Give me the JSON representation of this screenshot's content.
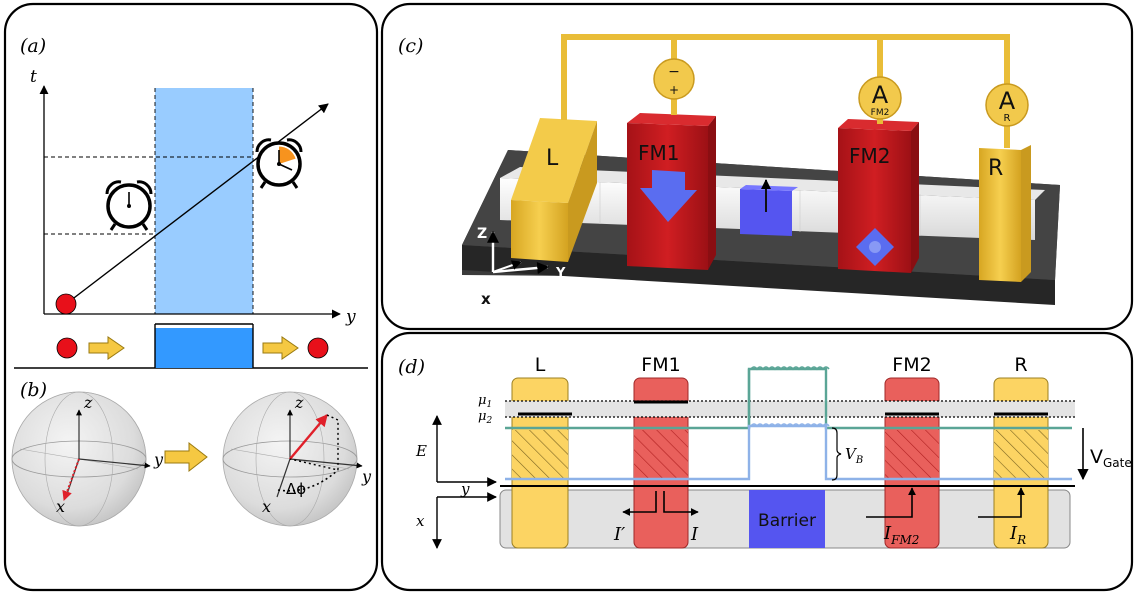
{
  "panels": {
    "a": {
      "label": "(a)",
      "axis_t": "t",
      "axis_y": "y"
    },
    "b": {
      "label": "(b)",
      "left_sphere": {
        "z": "z",
        "x": "x",
        "y": "y"
      },
      "right_sphere": {
        "z": "z",
        "x": "x",
        "y": "y",
        "angle": "Δϕ"
      }
    },
    "c": {
      "label": "(c)",
      "blocks": {
        "L": "L",
        "FM1": "FM1",
        "FM2": "FM2",
        "R": "R"
      },
      "meter_left_top": "−",
      "meter_left_bottom": "+",
      "meter_fm2_main": "A",
      "meter_fm2_sub": "FM2",
      "meter_r_main": "A",
      "meter_r_sub": "R",
      "axes": {
        "z": "Z",
        "y": "Y",
        "x": "x"
      }
    },
    "d": {
      "label": "(d)",
      "columns": {
        "L": "L",
        "FM1": "FM1",
        "FM2": "FM2",
        "R": "R"
      },
      "mu1": "μ",
      "mu1_sub": "1",
      "mu2": "μ",
      "mu2_sub": "2",
      "axis_E": "E",
      "axis_y": "y",
      "axis_x": "x",
      "vb": "V",
      "vb_sub": "B",
      "vgate": "V",
      "vgate_sub": "Gate",
      "barrier": "Barrier",
      "current_I_prime": "I′",
      "current_I": "I",
      "current_IFM2": "I",
      "current_IFM2_sub": "FM2",
      "current_IR": "I",
      "current_IR_sub": "R"
    }
  },
  "colors": {
    "barrier_light": "#99ccff",
    "barrier_dark": "#3399ff",
    "particle": "#e8101a",
    "arrow_yellow": "#f5c842",
    "gold": "#e9bd38",
    "ferro_red": "#c0181d",
    "barrier_blue": "#5555f0",
    "green_line": "#5aa596",
    "blue_line": "#8eb2e8",
    "lead_yellow": "#fcd463",
    "fm_red": "#e9605c"
  }
}
